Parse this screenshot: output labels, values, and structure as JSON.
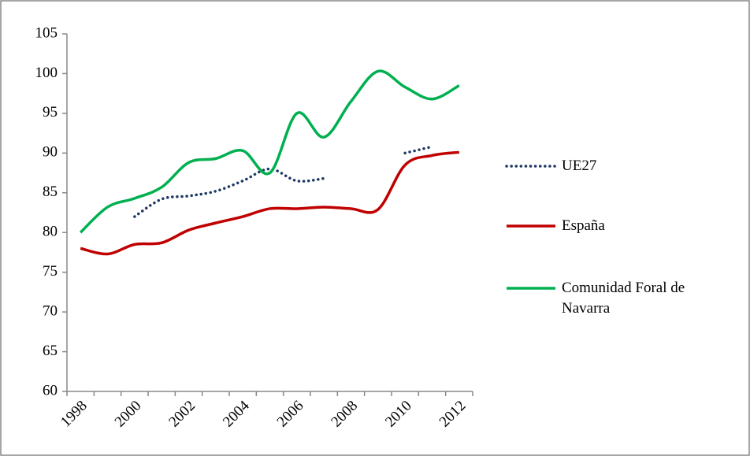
{
  "chart_data": {
    "type": "line",
    "categories": [
      "1998",
      null,
      "2000",
      null,
      "2002",
      null,
      "2004",
      null,
      "2006",
      null,
      "2008",
      null,
      "2010",
      null,
      "2012"
    ],
    "series": [
      {
        "name": "UE27",
        "color": "#1f3864",
        "dash": "dotted",
        "values": [
          null,
          null,
          82,
          84.2,
          84.6,
          85.2,
          86.5,
          88,
          86.5,
          86.8,
          null,
          null,
          90,
          90.8,
          null
        ]
      },
      {
        "name": "España",
        "color": "#c00000",
        "values": [
          78,
          77.3,
          78.5,
          78.7,
          80.3,
          81.2,
          82,
          83,
          83,
          83.2,
          83,
          82.9,
          88.5,
          89.7,
          90.1
        ]
      },
      {
        "name": "Comunidad Foral de Navarra",
        "color": "#00b050",
        "values": [
          80,
          83.2,
          84.3,
          85.7,
          88.8,
          89.3,
          90.3,
          87.5,
          95,
          92,
          96.5,
          100.3,
          98.3,
          96.8,
          98.5
        ]
      }
    ],
    "ylim": [
      60,
      105
    ],
    "yticks": [
      60,
      65,
      70,
      75,
      80,
      85,
      90,
      95,
      100,
      105
    ],
    "legend": "right"
  }
}
